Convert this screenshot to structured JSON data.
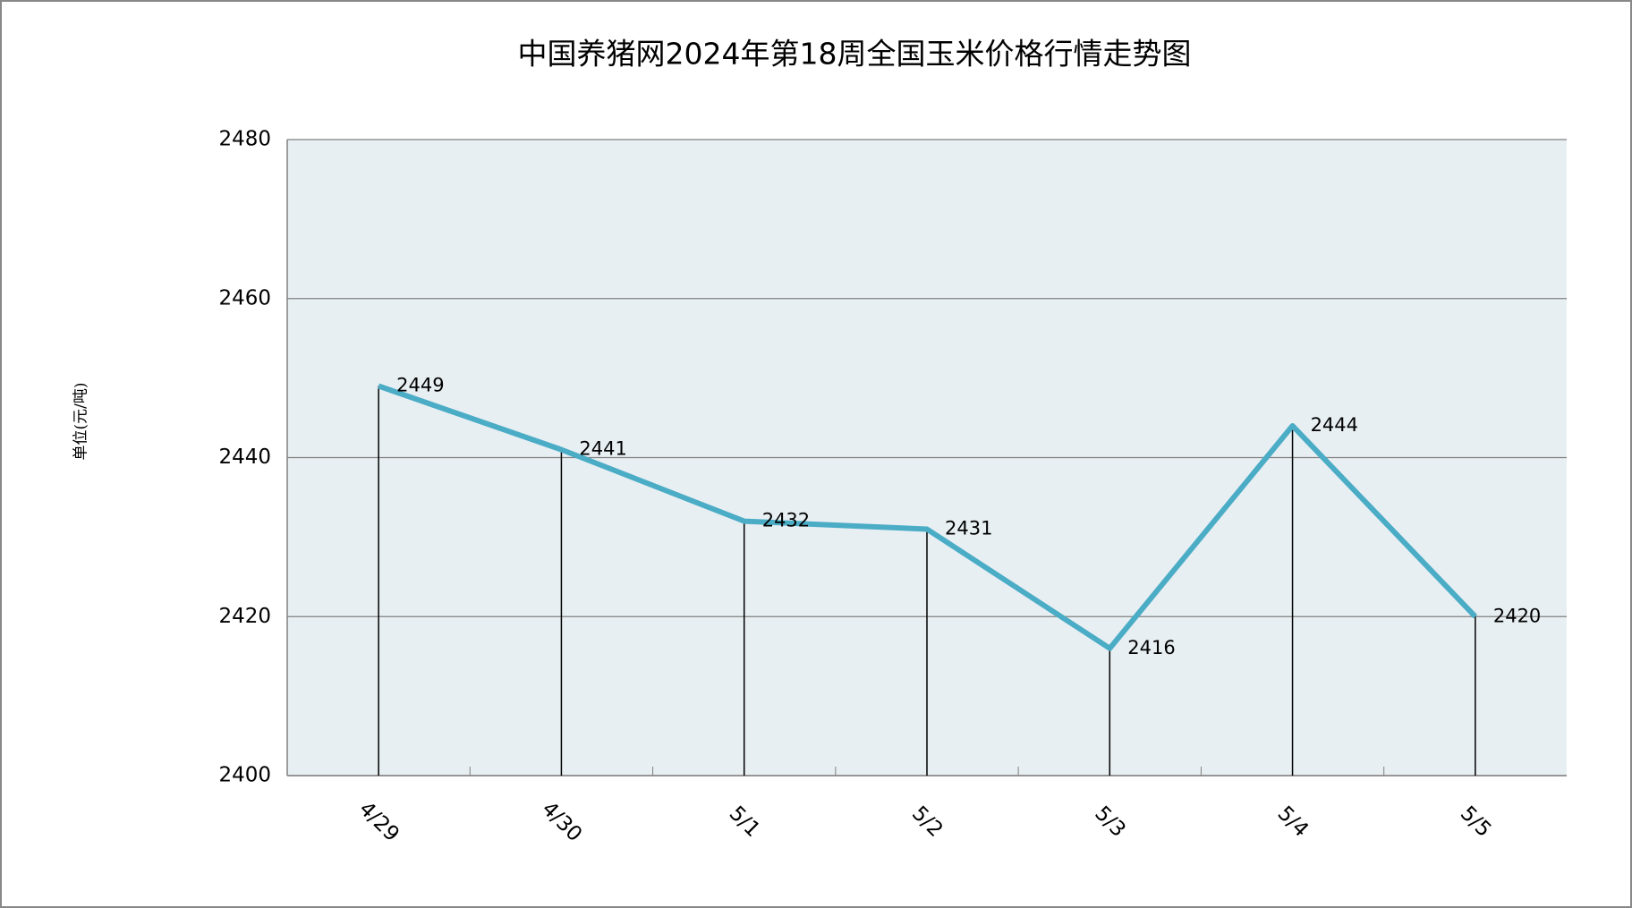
{
  "chart_data": {
    "type": "line",
    "title": "中国养猪网2024年第18周全国玉米价格行情走势图",
    "y_label": "单位(元/吨)",
    "categories": [
      "4/29",
      "4/30",
      "5/1",
      "5/2",
      "5/3",
      "5/4",
      "5/5"
    ],
    "values": [
      2449,
      2441,
      2432,
      2431,
      2416,
      2444,
      2420
    ],
    "color": "#4bacc6",
    "ylim": [
      2400,
      2480
    ],
    "yticks": [
      2400,
      2420,
      2440,
      2460,
      2480
    ],
    "grid": true
  }
}
